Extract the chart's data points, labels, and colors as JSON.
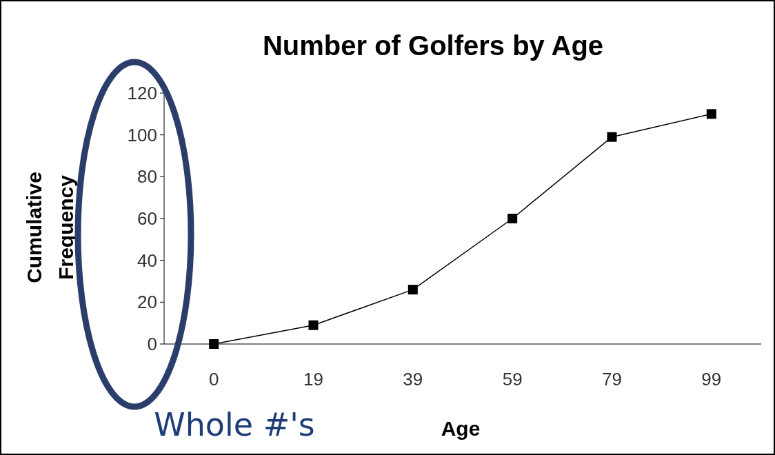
{
  "chart_data": {
    "type": "line",
    "title": "Number of Golfers by Age",
    "xlabel": "Age",
    "ylabel": "Cumulative Frequency",
    "categories": [
      "0",
      "19",
      "39",
      "59",
      "79",
      "99"
    ],
    "series": [
      {
        "color": "#000000",
        "values": [
          0,
          9,
          26,
          60,
          99,
          110
        ]
      }
    ],
    "ylim": [
      0,
      120
    ],
    "yticks": [
      0,
      20,
      40,
      60,
      80,
      100,
      120
    ],
    "marker": "square",
    "line_style": "solid",
    "grid": false,
    "annotations": [
      "Whole #'s"
    ]
  }
}
